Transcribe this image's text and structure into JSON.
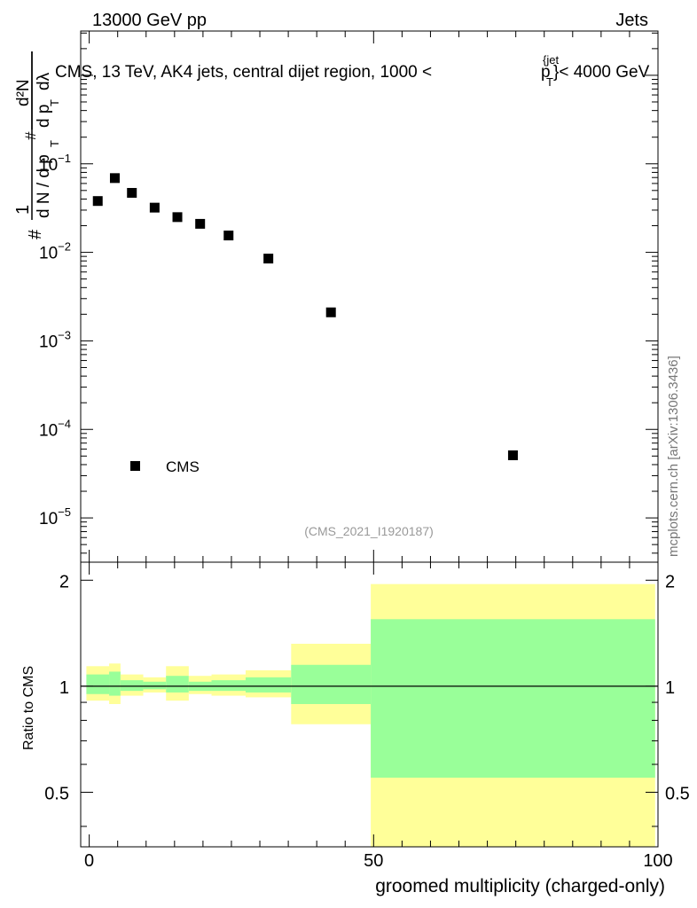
{
  "header": {
    "left": "13000 GeV pp",
    "right": "Jets"
  },
  "watermark": "mcplots.cern.ch [arXiv:1306.3436]",
  "chart_data": [
    {
      "type": "scatter",
      "title_parts": {
        "main": "CMS, 13 TeV, AK4 jets, central dijet region, 1000 <",
        "p": "p",
        "sub": "T",
        "sup": "{jet",
        "close": "}< 4000 GeV"
      },
      "ylabel_parts": {
        "hash1": "#",
        "one": "1",
        "dN": "d N / d p",
        "T1": "T",
        "hash2": "#",
        "d2N": "d²N",
        "dp": "d p",
        "T2": "T",
        "dl": "dλ"
      },
      "yscale": "log",
      "ylim_exp": [
        -5.5,
        0.5
      ],
      "ytick_labels": [
        {
          "exp": -1,
          "base": "10",
          "sup": "−1"
        },
        {
          "exp": -2,
          "base": "10",
          "sup": "−2"
        },
        {
          "exp": -3,
          "base": "10",
          "sup": "−3"
        },
        {
          "exp": -4,
          "base": "10",
          "sup": "−4"
        },
        {
          "exp": -5,
          "base": "10",
          "sup": "−5"
        }
      ],
      "xlim": [
        -1.5,
        100
      ],
      "series": [
        {
          "name": "CMS",
          "points": [
            {
              "x": 1.5,
              "y": 0.038
            },
            {
              "x": 4.5,
              "y": 0.069
            },
            {
              "x": 7.5,
              "y": 0.047
            },
            {
              "x": 11.5,
              "y": 0.032
            },
            {
              "x": 15.5,
              "y": 0.025
            },
            {
              "x": 19.5,
              "y": 0.021
            },
            {
              "x": 24.5,
              "y": 0.0155
            },
            {
              "x": 31.5,
              "y": 0.0085
            },
            {
              "x": 42.5,
              "y": 0.0021
            },
            {
              "x": 74.5,
              "y": 5.1e-05
            }
          ]
        }
      ],
      "legend": {
        "label": "CMS",
        "position": "bottom-left"
      },
      "analysis_tag": "(CMS_2021_I1920187)"
    },
    {
      "type": "area",
      "ylabel": "Ratio to CMS",
      "xlabel": "groomed multiplicity (charged-only)",
      "xlim": [
        -1.5,
        100
      ],
      "ylim": [
        0.35,
        2.25
      ],
      "xticks": [
        0,
        50,
        100
      ],
      "xtick_labels": [
        "0",
        "50",
        "100"
      ],
      "yticks": [
        0.5,
        1,
        2
      ],
      "ytick_labels": [
        "0.5",
        "1",
        "2"
      ],
      "reference_line": 1,
      "bands": [
        {
          "x": [
            -0.5,
            3.5
          ],
          "inner": [
            0.95,
            1.08
          ],
          "outer": [
            0.91,
            1.14
          ]
        },
        {
          "x": [
            3.5,
            5.5
          ],
          "inner": [
            0.94,
            1.1
          ],
          "outer": [
            0.89,
            1.16
          ]
        },
        {
          "x": [
            5.5,
            9.5
          ],
          "inner": [
            0.97,
            1.04
          ],
          "outer": [
            0.94,
            1.08
          ]
        },
        {
          "x": [
            9.5,
            13.5
          ],
          "inner": [
            0.98,
            1.03
          ],
          "outer": [
            0.96,
            1.06
          ]
        },
        {
          "x": [
            13.5,
            17.5
          ],
          "inner": [
            0.96,
            1.07
          ],
          "outer": [
            0.91,
            1.14
          ]
        },
        {
          "x": [
            17.5,
            21.5
          ],
          "inner": [
            0.97,
            1.03
          ],
          "outer": [
            0.95,
            1.07
          ]
        },
        {
          "x": [
            21.5,
            27.5
          ],
          "inner": [
            0.97,
            1.04
          ],
          "outer": [
            0.94,
            1.08
          ]
        },
        {
          "x": [
            27.5,
            35.5
          ],
          "inner": [
            0.96,
            1.06
          ],
          "outer": [
            0.93,
            1.11
          ]
        },
        {
          "x": [
            35.5,
            49.5
          ],
          "inner": [
            0.89,
            1.15
          ],
          "outer": [
            0.78,
            1.32
          ]
        },
        {
          "x": [
            49.5,
            99.5
          ],
          "inner": [
            0.55,
            1.55
          ],
          "outer": [
            0.3,
            1.95
          ]
        }
      ],
      "band_colors": {
        "inner": "#99ff99",
        "outer": "#ffff99"
      }
    }
  ]
}
